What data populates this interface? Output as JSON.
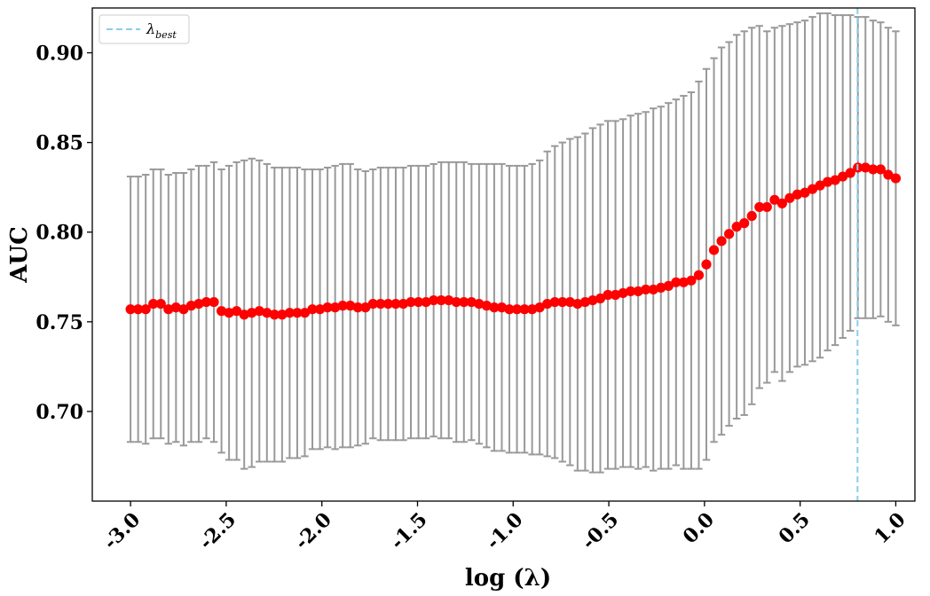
{
  "chart_data": {
    "type": "scatter",
    "title": "",
    "xlabel": "log (λ)",
    "ylabel": "AUC",
    "xlim": [
      -3.2,
      1.1
    ],
    "ylim": [
      0.65,
      0.925
    ],
    "xticks": [
      -3.0,
      -2.5,
      -2.0,
      -1.5,
      -1.0,
      -0.5,
      0.0,
      0.5,
      1.0
    ],
    "xtick_labels": [
      "-3.0",
      "-2.5",
      "-2.0",
      "-1.5",
      "-1.0",
      "-0.5",
      "0.0",
      "0.5",
      "1.0"
    ],
    "yticks": [
      0.7,
      0.75,
      0.8,
      0.85,
      0.9
    ],
    "ytick_labels": [
      "0.70",
      "0.75",
      "0.80",
      "0.85",
      "0.90"
    ],
    "grid": false,
    "legend": {
      "position": "top-left",
      "entries": [
        {
          "symbol": "λ",
          "subscript": "best",
          "style": "dashed",
          "color": "#87CEEB"
        }
      ]
    },
    "best_lambda_log": 0.8,
    "colors": {
      "points": "#ff0000",
      "errorbars": "#999999",
      "best_line": "#87CEEB"
    },
    "x_start": -3.0,
    "x_end": 1.0,
    "mean": [
      0.757,
      0.757,
      0.757,
      0.76,
      0.76,
      0.757,
      0.758,
      0.757,
      0.759,
      0.76,
      0.761,
      0.761,
      0.756,
      0.755,
      0.756,
      0.754,
      0.755,
      0.756,
      0.755,
      0.754,
      0.754,
      0.755,
      0.755,
      0.755,
      0.757,
      0.757,
      0.758,
      0.758,
      0.759,
      0.759,
      0.758,
      0.758,
      0.76,
      0.76,
      0.76,
      0.76,
      0.76,
      0.761,
      0.761,
      0.761,
      0.762,
      0.762,
      0.762,
      0.761,
      0.761,
      0.761,
      0.76,
      0.759,
      0.758,
      0.758,
      0.757,
      0.757,
      0.757,
      0.757,
      0.758,
      0.76,
      0.761,
      0.761,
      0.761,
      0.76,
      0.761,
      0.762,
      0.763,
      0.765,
      0.765,
      0.766,
      0.767,
      0.767,
      0.768,
      0.768,
      0.769,
      0.77,
      0.772,
      0.772,
      0.773,
      0.776,
      0.782,
      0.79,
      0.795,
      0.799,
      0.803,
      0.805,
      0.809,
      0.814,
      0.814,
      0.818,
      0.816,
      0.819,
      0.821,
      0.822,
      0.824,
      0.826,
      0.828,
      0.829,
      0.831,
      0.833,
      0.836,
      0.836,
      0.835,
      0.835,
      0.832,
      0.83
    ],
    "upper": [
      0.831,
      0.831,
      0.832,
      0.835,
      0.835,
      0.832,
      0.833,
      0.833,
      0.835,
      0.837,
      0.837,
      0.839,
      0.835,
      0.837,
      0.839,
      0.84,
      0.841,
      0.84,
      0.838,
      0.836,
      0.836,
      0.836,
      0.836,
      0.835,
      0.835,
      0.835,
      0.836,
      0.837,
      0.838,
      0.838,
      0.835,
      0.834,
      0.835,
      0.836,
      0.836,
      0.836,
      0.836,
      0.837,
      0.837,
      0.837,
      0.838,
      0.839,
      0.839,
      0.839,
      0.839,
      0.838,
      0.838,
      0.838,
      0.838,
      0.838,
      0.837,
      0.837,
      0.837,
      0.838,
      0.84,
      0.845,
      0.848,
      0.85,
      0.852,
      0.853,
      0.855,
      0.858,
      0.86,
      0.862,
      0.862,
      0.863,
      0.865,
      0.866,
      0.867,
      0.869,
      0.87,
      0.872,
      0.874,
      0.876,
      0.878,
      0.884,
      0.891,
      0.897,
      0.903,
      0.906,
      0.91,
      0.912,
      0.914,
      0.915,
      0.912,
      0.914,
      0.915,
      0.916,
      0.917,
      0.918,
      0.92,
      0.922,
      0.922,
      0.921,
      0.921,
      0.921,
      0.92,
      0.92,
      0.918,
      0.917,
      0.914,
      0.912
    ],
    "lower": [
      0.683,
      0.683,
      0.682,
      0.685,
      0.685,
      0.682,
      0.683,
      0.681,
      0.683,
      0.683,
      0.685,
      0.683,
      0.677,
      0.673,
      0.673,
      0.668,
      0.669,
      0.672,
      0.672,
      0.672,
      0.672,
      0.674,
      0.674,
      0.675,
      0.679,
      0.679,
      0.68,
      0.679,
      0.68,
      0.68,
      0.681,
      0.682,
      0.685,
      0.684,
      0.684,
      0.684,
      0.684,
      0.685,
      0.685,
      0.685,
      0.686,
      0.685,
      0.685,
      0.683,
      0.683,
      0.684,
      0.682,
      0.68,
      0.678,
      0.678,
      0.677,
      0.677,
      0.677,
      0.676,
      0.676,
      0.675,
      0.674,
      0.672,
      0.67,
      0.667,
      0.667,
      0.666,
      0.666,
      0.668,
      0.668,
      0.669,
      0.669,
      0.668,
      0.669,
      0.667,
      0.668,
      0.668,
      0.67,
      0.668,
      0.668,
      0.668,
      0.673,
      0.683,
      0.687,
      0.692,
      0.696,
      0.698,
      0.704,
      0.713,
      0.716,
      0.722,
      0.717,
      0.722,
      0.725,
      0.726,
      0.728,
      0.73,
      0.734,
      0.737,
      0.741,
      0.745,
      0.752,
      0.752,
      0.752,
      0.753,
      0.75,
      0.748
    ]
  }
}
